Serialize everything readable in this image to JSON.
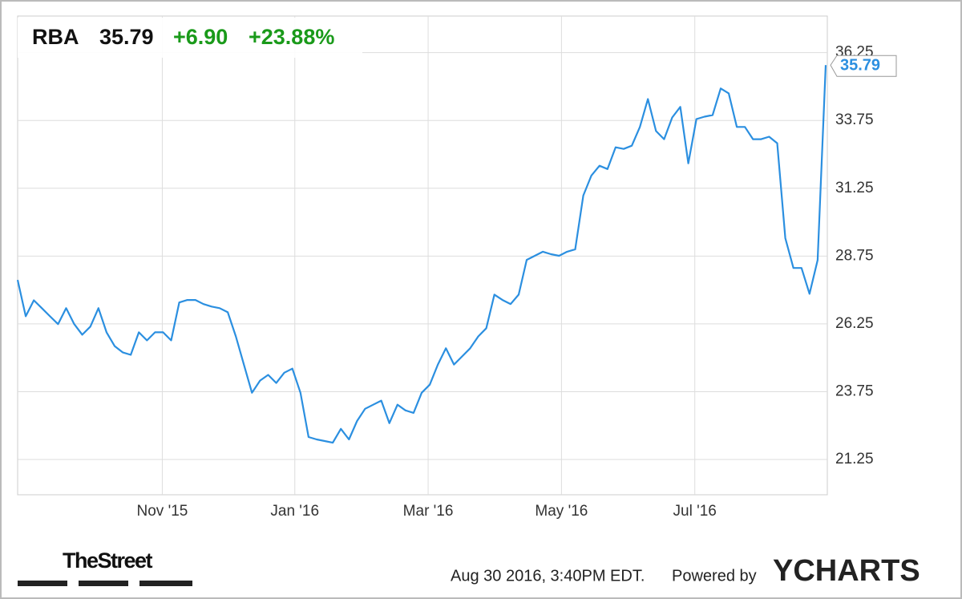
{
  "header": {
    "ticker": "RBA",
    "price": "35.79",
    "change": "+6.90",
    "change_pct": "+23.88%"
  },
  "chart_data": {
    "type": "line",
    "series": [
      {
        "name": "RBA",
        "color": "#2b8fe0",
        "values": [
          27.87,
          26.53,
          27.12,
          26.83,
          26.53,
          26.24,
          26.83,
          26.24,
          25.85,
          26.15,
          26.83,
          25.94,
          25.43,
          25.2,
          25.11,
          25.94,
          25.64,
          25.94,
          25.94,
          25.64,
          27.04,
          27.13,
          27.13,
          26.98,
          26.89,
          26.83,
          26.68,
          25.79,
          24.75,
          23.71,
          24.16,
          24.37,
          24.07,
          24.45,
          24.6,
          23.71,
          22.08,
          21.99,
          21.93,
          21.87,
          22.38,
          21.99,
          22.67,
          23.12,
          23.27,
          23.42,
          22.59,
          23.27,
          23.06,
          22.97,
          23.71,
          24.01,
          24.75,
          25.35,
          24.75,
          25.05,
          25.35,
          25.79,
          26.09,
          27.33,
          27.13,
          26.98,
          27.33,
          28.61,
          28.76,
          28.91,
          28.82,
          28.76,
          28.91,
          29.0,
          30.98,
          31.72,
          32.08,
          31.96,
          32.76,
          32.7,
          32.82,
          33.51,
          34.54,
          33.36,
          33.06,
          33.86,
          34.25,
          32.17,
          33.8,
          33.89,
          33.95,
          34.93,
          34.75,
          33.51,
          33.51,
          33.06,
          33.06,
          33.15,
          32.91,
          29.41,
          28.31,
          28.31,
          27.36,
          28.6,
          35.79
        ]
      }
    ],
    "xlim": [
      0,
      100
    ],
    "xticks": [
      {
        "value": 17.9,
        "label": "Nov '15"
      },
      {
        "value": 34.3,
        "label": "Jan '16"
      },
      {
        "value": 50.8,
        "label": "Mar '16"
      },
      {
        "value": 67.3,
        "label": "May '16"
      },
      {
        "value": 83.8,
        "label": "Jul '16"
      }
    ],
    "ylim": [
      19.95,
      37.6
    ],
    "yticks": [
      21.25,
      23.75,
      26.25,
      28.75,
      31.25,
      33.75,
      36.25
    ],
    "grid": true
  },
  "footer": {
    "brand": "TheStreet",
    "timestamp": "Aug 30 2016, 3:40PM EDT.",
    "powered_by": "Powered by",
    "provider": "YCHARTS"
  }
}
